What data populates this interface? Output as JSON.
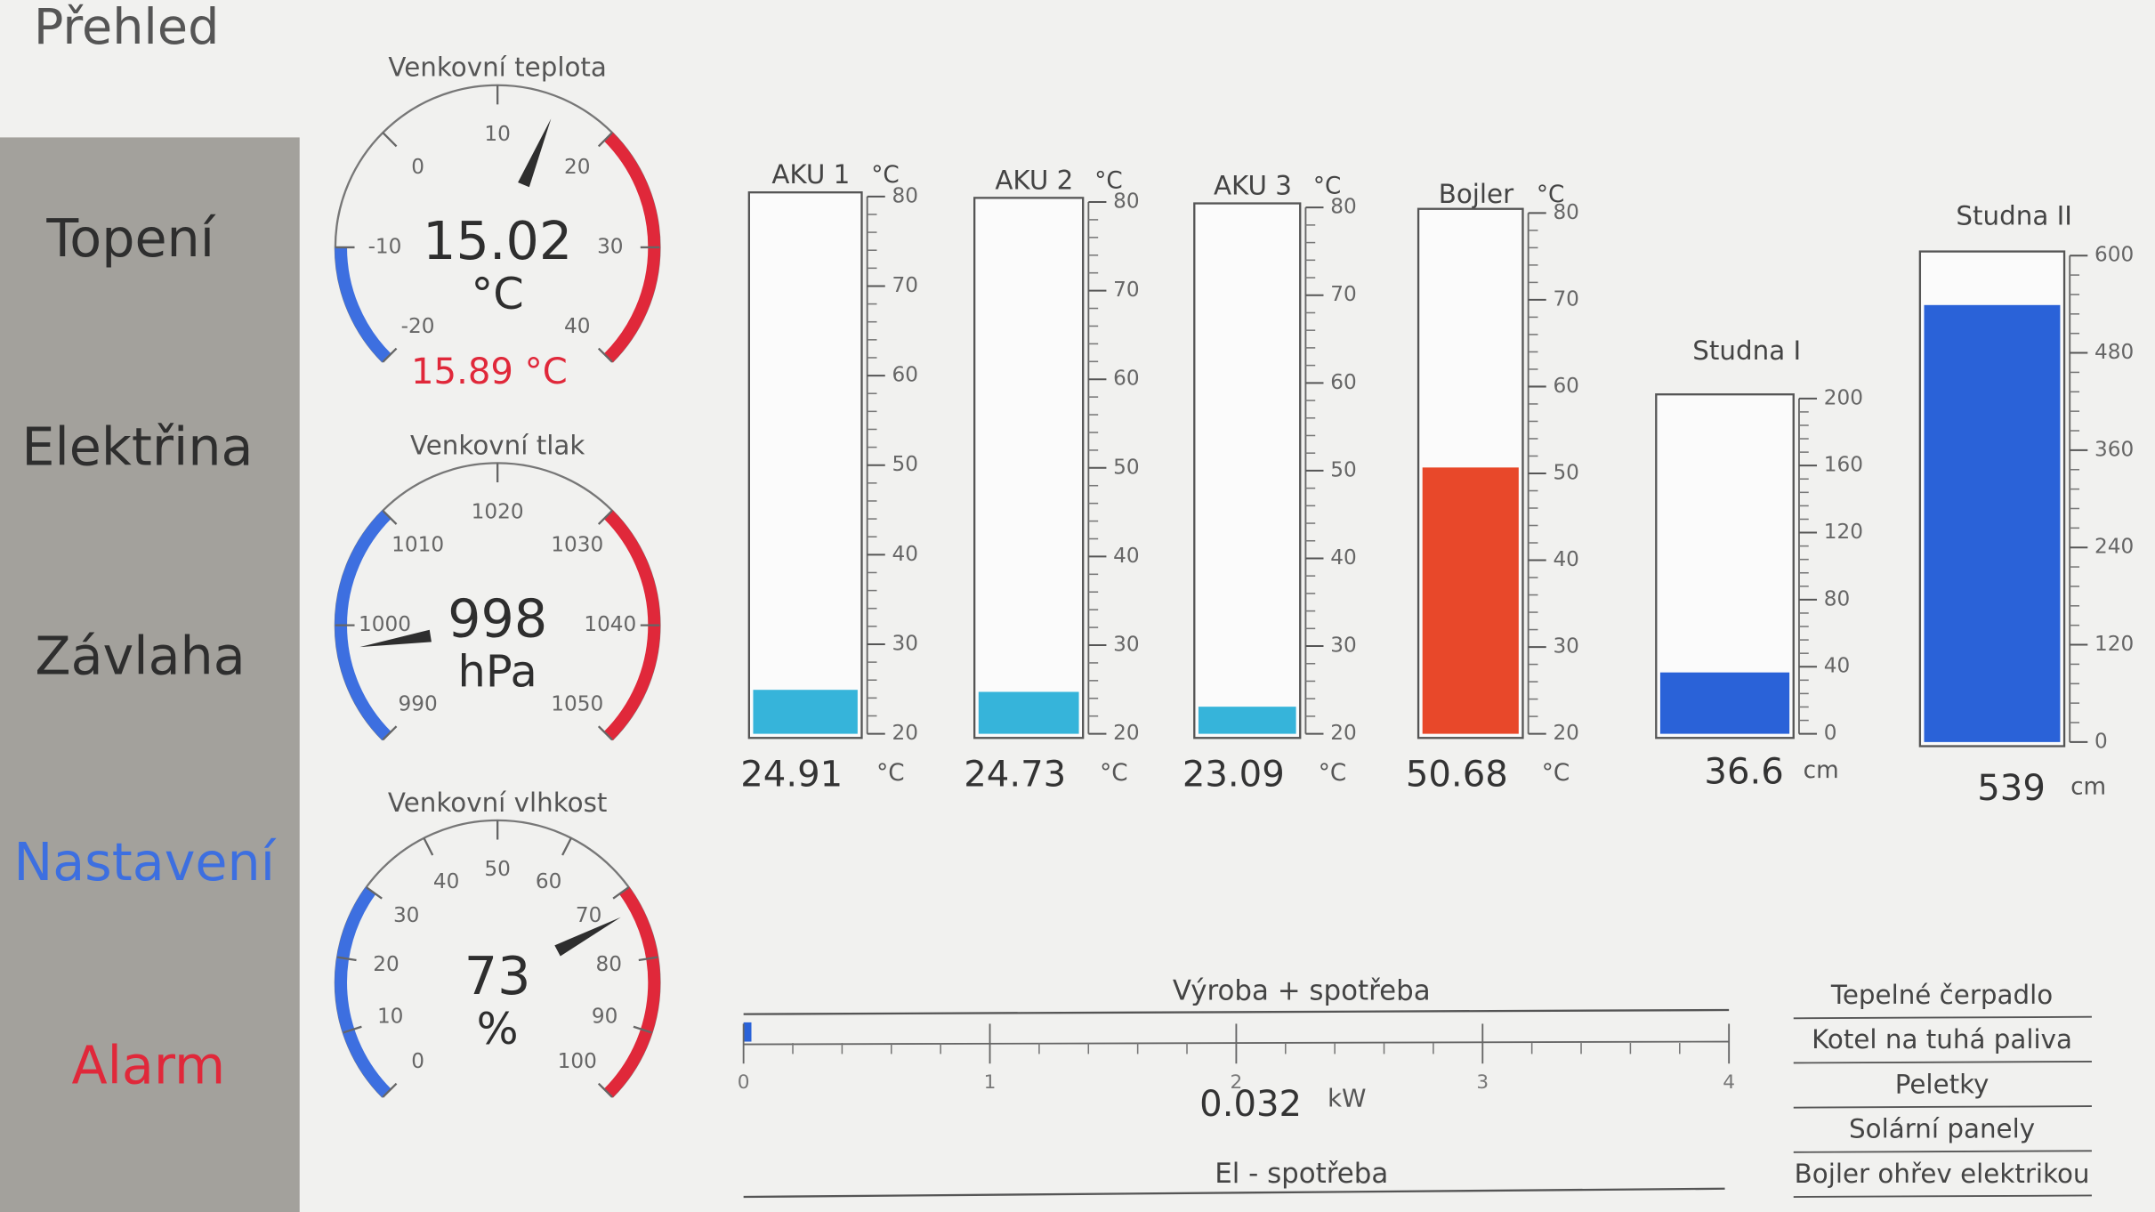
{
  "header": {
    "title": "Přehled"
  },
  "nav": [
    "Topení",
    "Elektřina",
    "Závlaha",
    "Nastavení",
    "Alarm"
  ],
  "gauges": [
    {
      "title": "Venkovní teplota",
      "value": 15.02,
      "unit": "°C",
      "secondary": "15.89 °C",
      "lim": [
        -20,
        40
      ],
      "ticks": [
        -20,
        -10,
        0,
        10,
        20,
        30,
        40
      ],
      "zones": [
        {
          "from": -20,
          "to": -10,
          "color": "#3d6fe0"
        },
        {
          "from": 20,
          "to": 40,
          "color": "#e0283a"
        }
      ]
    },
    {
      "title": "Venkovní tlak",
      "value": 998,
      "unit": "hPa",
      "lim": [
        990,
        1050
      ],
      "ticks": [
        990,
        1000,
        1010,
        1020,
        1030,
        1040,
        1050
      ],
      "zones": [
        {
          "from": 990,
          "to": 1010,
          "color": "#3d6fe0"
        },
        {
          "from": 1030,
          "to": 1050,
          "color": "#e0283a"
        }
      ]
    },
    {
      "title": "Venkovní vlhkost",
      "value": 73,
      "unit": "%",
      "lim": [
        0,
        100
      ],
      "ticks": [
        0,
        10,
        20,
        30,
        40,
        50,
        60,
        70,
        80,
        90,
        100
      ],
      "zones": [
        {
          "from": 0,
          "to": 30,
          "color": "#3d6fe0"
        },
        {
          "from": 70,
          "to": 100,
          "color": "#e0283a"
        }
      ]
    }
  ],
  "tanks": [
    {
      "title": "AKU 1",
      "unit": "°C",
      "value": 24.91,
      "lim": [
        20,
        80
      ],
      "ticks": [
        20,
        30,
        40,
        50,
        60,
        70,
        80
      ],
      "color": "#36b4da"
    },
    {
      "title": "AKU 2",
      "unit": "°C",
      "value": 24.73,
      "lim": [
        20,
        80
      ],
      "ticks": [
        20,
        30,
        40,
        50,
        60,
        70,
        80
      ],
      "color": "#36b4da"
    },
    {
      "title": "AKU 3",
      "unit": "°C",
      "value": 23.09,
      "lim": [
        20,
        80
      ],
      "ticks": [
        20,
        30,
        40,
        50,
        60,
        70,
        80
      ],
      "color": "#36b4da"
    },
    {
      "title": "Bojler",
      "unit": "°C",
      "value": 50.68,
      "lim": [
        20,
        80
      ],
      "ticks": [
        20,
        30,
        40,
        50,
        60,
        70,
        80
      ],
      "color": "#e8482a"
    },
    {
      "title": "Studna I",
      "unit": "cm",
      "value": 36.6,
      "lim": [
        0,
        200
      ],
      "ticks": [
        0,
        40,
        80,
        120,
        160,
        200
      ],
      "color": "#2a62d8"
    },
    {
      "title": "Studna II",
      "unit": "cm",
      "value": 539,
      "lim": [
        0,
        600
      ],
      "ticks": [
        0,
        120,
        240,
        360,
        480,
        600
      ],
      "color": "#2a62d8"
    }
  ],
  "power": {
    "title": "Výroba + spotřeba",
    "value": 0.032,
    "unit": "kW",
    "lim": [
      0,
      4
    ],
    "ticks": [
      0,
      1,
      2,
      3,
      4
    ],
    "color": "#2a62d8"
  },
  "el_consumption": {
    "title": "El - spotřeba"
  },
  "sources": [
    "Tepelné čerpadlo",
    "Kotel na tuhá paliva",
    "Peletky",
    "Solární panely",
    "Bojler ohřev elektrikou"
  ]
}
